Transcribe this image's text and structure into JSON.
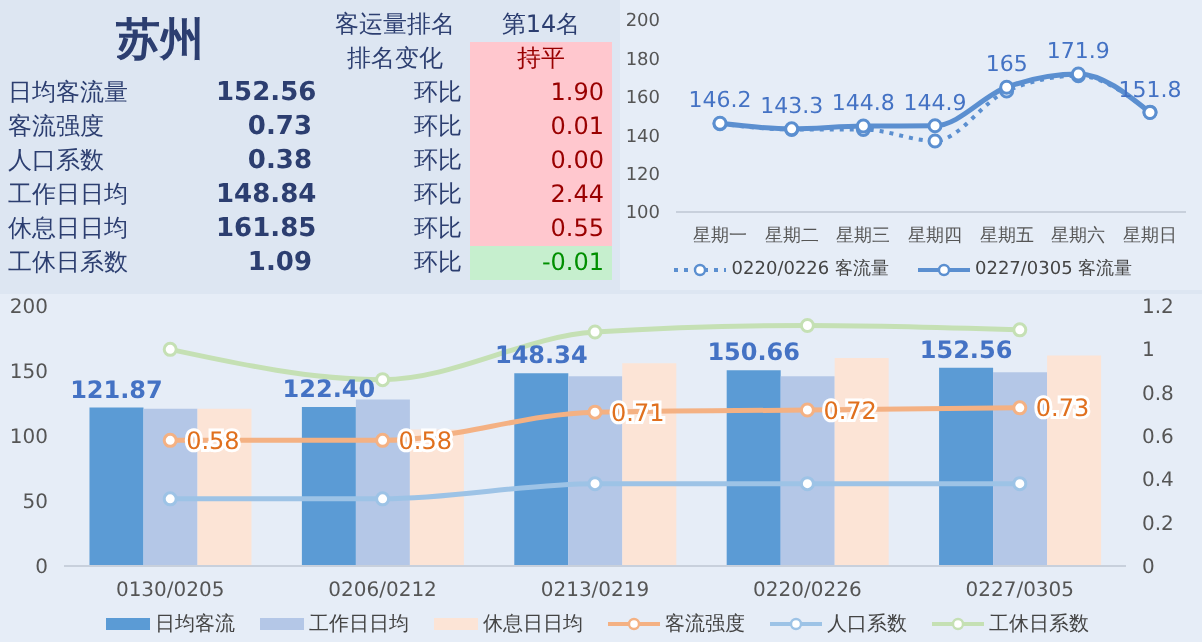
{
  "chart_data": [
    {
      "type": "other",
      "title": "苏州",
      "annotations": [
        "客运量排名",
        "第14名",
        "排名变化",
        "持平",
        "日均客流量",
        "152.56",
        "环比",
        "1.90",
        "客流强度",
        "0.73",
        "环比",
        "0.01",
        "人口系数",
        "0.38",
        "环比",
        "0.00",
        "工作日日均",
        "148.84",
        "环比",
        "2.44",
        "休息日日均",
        "161.85",
        "环比",
        "0.55",
        "工休日系数",
        "1.09",
        "环比",
        "-0.01"
      ],
      "colors": [
        "#ffc7ce",
        "#ffc7ce",
        "#ffc7ce",
        "#ffc7ce",
        "#ffc7ce",
        "#ffc7ce",
        "#c6efce"
      ]
    },
    {
      "type": "line",
      "categories": [
        "星期一",
        "星期二",
        "星期三",
        "星期四",
        "星期五",
        "星期六",
        "星期日"
      ],
      "ylim": [
        100,
        200
      ],
      "yticks": [
        100,
        120,
        140,
        160,
        180,
        200
      ],
      "legend": "bottom",
      "marker": "circle",
      "series": [
        {
          "name": "0220/0226 客流量",
          "color": "#5b8fd0",
          "line_style": "dotted",
          "values": [
            146,
            143,
            143,
            137,
            163,
            171,
            152
          ]
        },
        {
          "name": "0227/0305 客流量",
          "color": "#5b8fd0",
          "line_style": "solid",
          "values": [
            146.2,
            143.3,
            144.8,
            144.9,
            165,
            171.9,
            151.8
          ],
          "value_labels": [
            "146.2",
            "143.3",
            "144.8",
            "144.9",
            "165",
            "171.9",
            "151.8"
          ]
        }
      ]
    },
    {
      "type": "bar",
      "categories": [
        "0130/0205",
        "0206/0212",
        "0213/0219",
        "0220/0226",
        "0227/0305"
      ],
      "ylim": [
        0,
        200
      ],
      "yticks": [
        0,
        50,
        100,
        150,
        200
      ],
      "y2lim": [
        0,
        1.2
      ],
      "y2ticks": [
        0,
        0.2,
        0.4,
        0.6,
        0.8,
        1,
        1.2
      ],
      "legend": "bottom",
      "marker": "circle",
      "series": [
        {
          "name": "日均客流",
          "color": "#5b9bd5",
          "values": [
            121.87,
            122.4,
            148.34,
            150.66,
            152.56
          ],
          "value_labels": [
            "121.87",
            "122.40",
            "148.34",
            "150.66",
            "152.56"
          ]
        },
        {
          "name": "工作日日均",
          "color": "#b4c7e7",
          "values": [
            121,
            128,
            146,
            146,
            149
          ]
        },
        {
          "name": "休息日日均",
          "color": "#fce4d6",
          "values": [
            121,
            105,
            156,
            160,
            162
          ]
        },
        {
          "name": "客流强度",
          "type": "line",
          "axis": "y2",
          "color": "#f4b183",
          "values": [
            0.58,
            0.58,
            0.71,
            0.72,
            0.73
          ],
          "value_labels": [
            "0.58",
            "0.58",
            "0.71",
            "0.72",
            "0.73"
          ]
        },
        {
          "name": "人口系数",
          "type": "line",
          "axis": "y2",
          "color": "#9dc3e6",
          "values": [
            0.31,
            0.31,
            0.38,
            0.38,
            0.38
          ]
        },
        {
          "name": "工休日系数",
          "type": "line",
          "axis": "y2",
          "color": "#c5e0b4",
          "values": [
            1.0,
            0.86,
            1.08,
            1.11,
            1.09
          ]
        }
      ]
    }
  ]
}
